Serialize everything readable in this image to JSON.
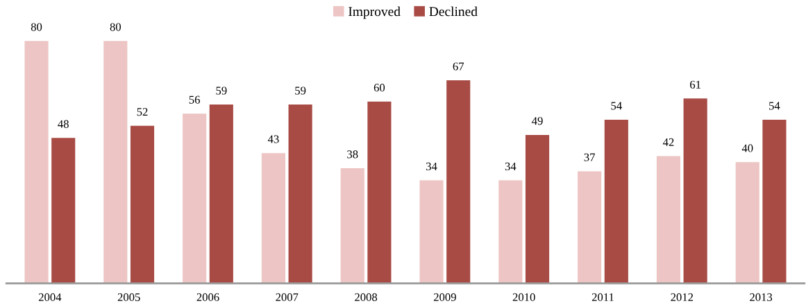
{
  "chart_data": {
    "type": "bar",
    "categories": [
      "2004",
      "2005",
      "2006",
      "2007",
      "2008",
      "2009",
      "2010",
      "2011",
      "2012",
      "2013"
    ],
    "series": [
      {
        "name": "Improved",
        "color": "#edc5c4",
        "values": [
          80,
          80,
          56,
          43,
          38,
          34,
          34,
          37,
          42,
          40
        ]
      },
      {
        "name": "Declined",
        "color": "#a84b45",
        "values": [
          48,
          52,
          59,
          59,
          60,
          67,
          49,
          54,
          61,
          54
        ]
      }
    ],
    "data_labels": true,
    "legend": "top",
    "grid": false
  }
}
